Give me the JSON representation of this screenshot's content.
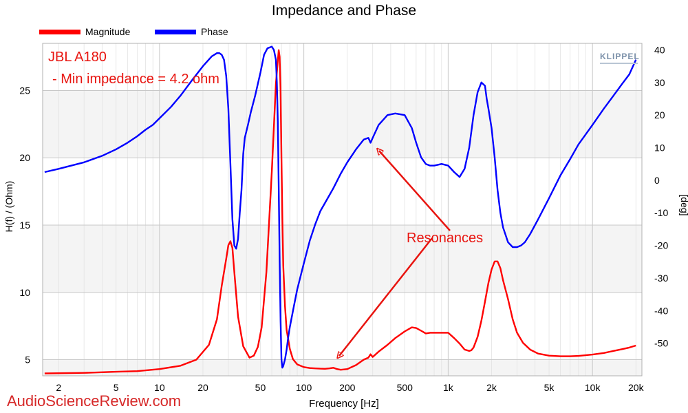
{
  "chart_data": {
    "type": "line",
    "title": "Impedance and Phase",
    "xlabel": "Frequency [Hz]",
    "ylabel": "H(f) / (Ohm)",
    "ylabel_right": "[deg]",
    "x_scale": "log",
    "xlim": [
      1.55,
      22000
    ],
    "ylim": [
      3.8,
      28.5
    ],
    "ylim_right": [
      -60,
      42
    ],
    "x_ticks": [
      {
        "value": 2,
        "label": "2"
      },
      {
        "value": 5,
        "label": "5"
      },
      {
        "value": 10,
        "label": "10"
      },
      {
        "value": 20,
        "label": "20"
      },
      {
        "value": 50,
        "label": "50"
      },
      {
        "value": 100,
        "label": "100"
      },
      {
        "value": 200,
        "label": "200"
      },
      {
        "value": 500,
        "label": "500"
      },
      {
        "value": 1000,
        "label": "1k"
      },
      {
        "value": 2000,
        "label": "2k"
      },
      {
        "value": 5000,
        "label": "5k"
      },
      {
        "value": 10000,
        "label": "10k"
      },
      {
        "value": 20000,
        "label": "20k"
      }
    ],
    "y_ticks": [
      5,
      10,
      15,
      20,
      25
    ],
    "y_ticks_right": [
      -50,
      -40,
      -30,
      -20,
      -10,
      0,
      10,
      20,
      30,
      40
    ],
    "grid": true,
    "legend_position": "top-left",
    "series": [
      {
        "name": "Magnitude",
        "axis": "left",
        "color": "#ff0000",
        "x": [
          1.6,
          3,
          5,
          7,
          10,
          14,
          18,
          22,
          25,
          27,
          29,
          30,
          31,
          32,
          33,
          35,
          38,
          42,
          45,
          48,
          51,
          55,
          60,
          64,
          67,
          68,
          69,
          70,
          71,
          72,
          74,
          76,
          80,
          84,
          90,
          100,
          110,
          120,
          130,
          140,
          150,
          160,
          170,
          180,
          200,
          230,
          260,
          280,
          290,
          300,
          330,
          380,
          430,
          500,
          560,
          600,
          650,
          700,
          750,
          800,
          900,
          1000,
          1100,
          1200,
          1300,
          1400,
          1450,
          1500,
          1600,
          1700,
          1800,
          1900,
          2000,
          2100,
          2200,
          2300,
          2400,
          2600,
          2800,
          3000,
          3300,
          3700,
          4200,
          5000,
          6000,
          7000,
          8000,
          10000,
          12000,
          14000,
          16000,
          18000,
          20000
        ],
        "values": [
          3.98,
          4.02,
          4.1,
          4.15,
          4.3,
          4.55,
          5.0,
          6.1,
          8.0,
          10.5,
          12.5,
          13.5,
          13.8,
          13.3,
          11.5,
          8.2,
          6.0,
          5.15,
          5.3,
          5.95,
          7.4,
          11.5,
          19.0,
          25.5,
          28.0,
          27.5,
          25.0,
          20.0,
          15.5,
          12.0,
          9.0,
          7.2,
          5.8,
          5.05,
          4.65,
          4.45,
          4.38,
          4.35,
          4.33,
          4.32,
          4.35,
          4.4,
          4.3,
          4.25,
          4.3,
          4.6,
          5.0,
          5.15,
          5.4,
          5.2,
          5.6,
          6.1,
          6.6,
          7.1,
          7.4,
          7.35,
          7.15,
          6.95,
          7.0,
          7.0,
          7.0,
          7.0,
          6.6,
          6.2,
          5.75,
          5.65,
          5.7,
          5.9,
          6.7,
          7.9,
          9.3,
          10.7,
          11.7,
          12.3,
          12.3,
          11.8,
          10.9,
          9.5,
          8.0,
          7.0,
          6.25,
          5.75,
          5.45,
          5.3,
          5.25,
          5.25,
          5.28,
          5.38,
          5.5,
          5.65,
          5.78,
          5.9,
          6.05
        ]
      },
      {
        "name": "Phase",
        "axis": "right",
        "color": "#0000ff",
        "x": [
          1.6,
          2,
          3,
          4,
          5,
          6,
          7,
          8,
          9,
          10,
          12,
          14,
          17,
          20,
          23,
          25,
          26,
          27,
          28,
          29,
          30,
          31,
          32,
          33,
          34,
          35,
          36,
          37,
          38,
          39,
          41,
          43,
          46,
          50,
          53,
          56,
          60,
          62,
          64,
          65,
          66,
          67,
          68,
          69,
          70,
          71,
          72,
          73,
          74,
          76,
          78,
          80,
          85,
          90,
          100,
          110,
          120,
          130,
          140,
          160,
          180,
          200,
          230,
          260,
          280,
          290,
          300,
          330,
          380,
          430,
          500,
          560,
          600,
          650,
          700,
          750,
          800,
          900,
          1000,
          1100,
          1200,
          1300,
          1400,
          1500,
          1600,
          1700,
          1800,
          1850,
          1900,
          2000,
          2100,
          2200,
          2300,
          2400,
          2600,
          2800,
          3000,
          3200,
          3400,
          3700,
          4200,
          5000,
          6000,
          7000,
          8000,
          10000,
          12000,
          14000,
          16000,
          18000,
          20000
        ],
        "values": [
          2.5,
          3.5,
          5.5,
          7.5,
          9.5,
          11.5,
          13.5,
          15.5,
          17.0,
          19.0,
          22.5,
          26.0,
          31.0,
          35.0,
          38.0,
          39.0,
          39.0,
          38.5,
          37.0,
          32.0,
          22.0,
          5.0,
          -12.0,
          -20.0,
          -21.0,
          -18.0,
          -10.0,
          -3.0,
          8.0,
          13.0,
          17.0,
          21.0,
          26.0,
          33.0,
          38.5,
          40.5,
          41.0,
          40.0,
          37.0,
          30.0,
          18.0,
          -2.0,
          -25.0,
          -43.0,
          -55.0,
          -57.5,
          -57.0,
          -56.0,
          -55.0,
          -52.0,
          -48.0,
          -45.0,
          -39.0,
          -33.5,
          -25.5,
          -18.5,
          -13.5,
          -9.5,
          -7.0,
          -2.5,
          2.0,
          5.5,
          9.5,
          12.5,
          13.0,
          11.5,
          13.0,
          17.0,
          20.0,
          20.5,
          20.0,
          16.0,
          11.5,
          7.0,
          5.0,
          4.5,
          4.5,
          5.0,
          4.5,
          2.5,
          1.0,
          3.5,
          10.0,
          20.0,
          27.0,
          30.0,
          29.0,
          25.0,
          22.0,
          16.0,
          7.0,
          -3.0,
          -10.0,
          -14.5,
          -19.0,
          -20.5,
          -20.5,
          -20.0,
          -19.0,
          -16.5,
          -12.0,
          -5.5,
          1.5,
          6.5,
          11.0,
          17.0,
          22.0,
          26.0,
          29.5,
          32.5,
          37.0
        ]
      }
    ],
    "annotations": [
      {
        "text": "JBL A180"
      },
      {
        "text": " - Min impedance = 4.2 ohm"
      },
      {
        "text": "Resonances"
      }
    ]
  },
  "legend": [
    {
      "label": "Magnitude",
      "color": "#ff0000"
    },
    {
      "label": "Phase",
      "color": "#0000ff"
    }
  ],
  "logo_text": "KLIPPEL",
  "watermark": "AudioScienceReview.com",
  "colors": {
    "annotation": "#e8140f",
    "grid_major": "#c8c8c8",
    "grid_minor": "#e2e2e2",
    "band": "#f4f4f4"
  }
}
